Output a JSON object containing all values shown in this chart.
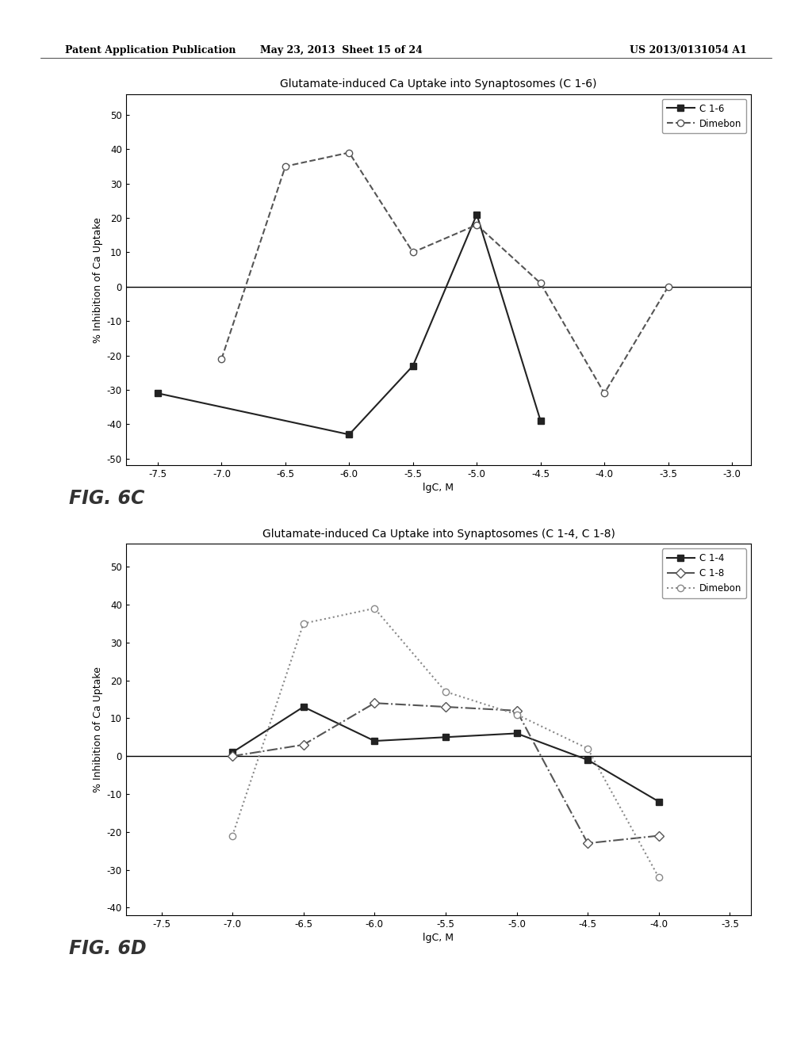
{
  "fig6c": {
    "title": "Glutamate-induced Ca Uptake into Synaptosomes (C 1-6)",
    "xlabel": "lgC, M",
    "ylabel": "% Inhibition of Ca Uptake",
    "xlim": [
      -7.75,
      -2.85
    ],
    "ylim": [
      -52,
      56
    ],
    "yticks": [
      -50,
      -40,
      -30,
      -20,
      -10,
      0,
      10,
      20,
      30,
      40,
      50
    ],
    "xticks": [
      -7.5,
      -7.0,
      -6.5,
      -6.0,
      -5.5,
      -5.0,
      -4.5,
      -4.0,
      -3.5,
      -3.0
    ],
    "xtick_labels": [
      "-7.5",
      "-7.0",
      "-6.5",
      "-6.0",
      "-5.5",
      "-5.0",
      "-4.5",
      "-4.0",
      "-3.5",
      "-3.0"
    ],
    "series_order": [
      "C 1-6",
      "Dimebon"
    ],
    "series": {
      "C 1-6": {
        "x": [
          -7.5,
          -6.0,
          -5.5,
          -5.0,
          -4.5
        ],
        "y": [
          -31,
          -43,
          -23,
          21,
          -39
        ],
        "color": "#222222",
        "linestyle": "-",
        "marker": "s",
        "markersize": 6,
        "linewidth": 1.5,
        "markerfacecolor": "#222222",
        "markeredgecolor": "#222222"
      },
      "Dimebon": {
        "x": [
          -7.0,
          -6.5,
          -6.0,
          -5.5,
          -5.0,
          -4.5,
          -4.0,
          -3.5
        ],
        "y": [
          -21,
          35,
          39,
          10,
          18,
          1,
          -31,
          0
        ],
        "color": "#555555",
        "linestyle": "--",
        "marker": "o",
        "markersize": 6,
        "linewidth": 1.5,
        "markerfacecolor": "white",
        "markeredgecolor": "#555555"
      }
    }
  },
  "fig6d": {
    "title": "Glutamate-induced Ca Uptake into Synaptosomes (C 1-4, C 1-8)",
    "xlabel": "lgC, M",
    "ylabel": "% Inhibition of Ca Uptake",
    "xlim": [
      -7.75,
      -3.35
    ],
    "ylim": [
      -42,
      56
    ],
    "yticks": [
      -40,
      -30,
      -20,
      -10,
      0,
      10,
      20,
      30,
      40,
      50
    ],
    "xticks": [
      -7.5,
      -7.0,
      -6.5,
      -6.0,
      -5.5,
      -5.0,
      -4.5,
      -4.0,
      -3.5
    ],
    "xtick_labels": [
      "-7.5",
      "-7.0",
      "-6.5",
      "-6.0",
      "-5.5",
      "-5.0",
      "-4.5",
      "-4.0",
      "-3.5"
    ],
    "series_order": [
      "C 1-4",
      "C 1-8",
      "Dimebon"
    ],
    "series": {
      "C 1-4": {
        "x": [
          -7.0,
          -6.5,
          -6.0,
          -5.5,
          -5.0,
          -4.5,
          -4.0
        ],
        "y": [
          1,
          13,
          4,
          5,
          6,
          -1,
          -12
        ],
        "color": "#222222",
        "linestyle": "-",
        "marker": "s",
        "markersize": 6,
        "linewidth": 1.5,
        "markerfacecolor": "#222222",
        "markeredgecolor": "#222222"
      },
      "C 1-8": {
        "x": [
          -7.0,
          -6.5,
          -6.0,
          -5.5,
          -5.0,
          -4.5,
          -4.0
        ],
        "y": [
          0,
          3,
          14,
          13,
          12,
          -23,
          -21
        ],
        "color": "#555555",
        "linestyle": "-.",
        "marker": "D",
        "markersize": 6,
        "linewidth": 1.5,
        "markerfacecolor": "white",
        "markeredgecolor": "#555555"
      },
      "Dimebon": {
        "x": [
          -7.0,
          -6.5,
          -6.0,
          -5.5,
          -5.0,
          -4.5,
          -4.0
        ],
        "y": [
          -21,
          35,
          39,
          17,
          11,
          2,
          -32
        ],
        "color": "#888888",
        "linestyle": ":",
        "marker": "o",
        "markersize": 6,
        "linewidth": 1.5,
        "markerfacecolor": "white",
        "markeredgecolor": "#888888"
      }
    }
  },
  "header_left": "Patent Application Publication",
  "header_mid": "May 23, 2013  Sheet 15 of 24",
  "header_right": "US 2013/0131054 A1",
  "fig6c_label": "FIG. 6C",
  "fig6d_label": "FIG. 6D",
  "background_color": "#ffffff",
  "plot_bg_color": "#ffffff"
}
